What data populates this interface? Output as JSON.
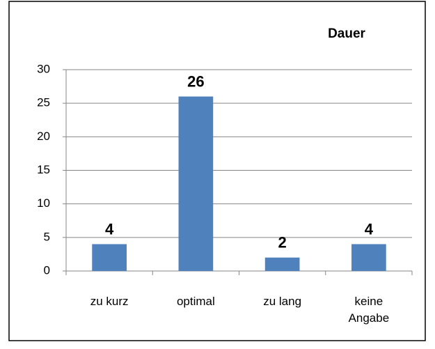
{
  "chart_data": {
    "type": "bar",
    "title": "Dauer",
    "categories": [
      "zu kurz",
      "optimal",
      "zu lang",
      "keine Angabe"
    ],
    "values": [
      4,
      26,
      2,
      4
    ],
    "color": "#4f81bd",
    "ylim": [
      0,
      30
    ],
    "yticks": [
      0,
      5,
      10,
      15,
      20,
      25,
      30
    ],
    "grid": true
  }
}
